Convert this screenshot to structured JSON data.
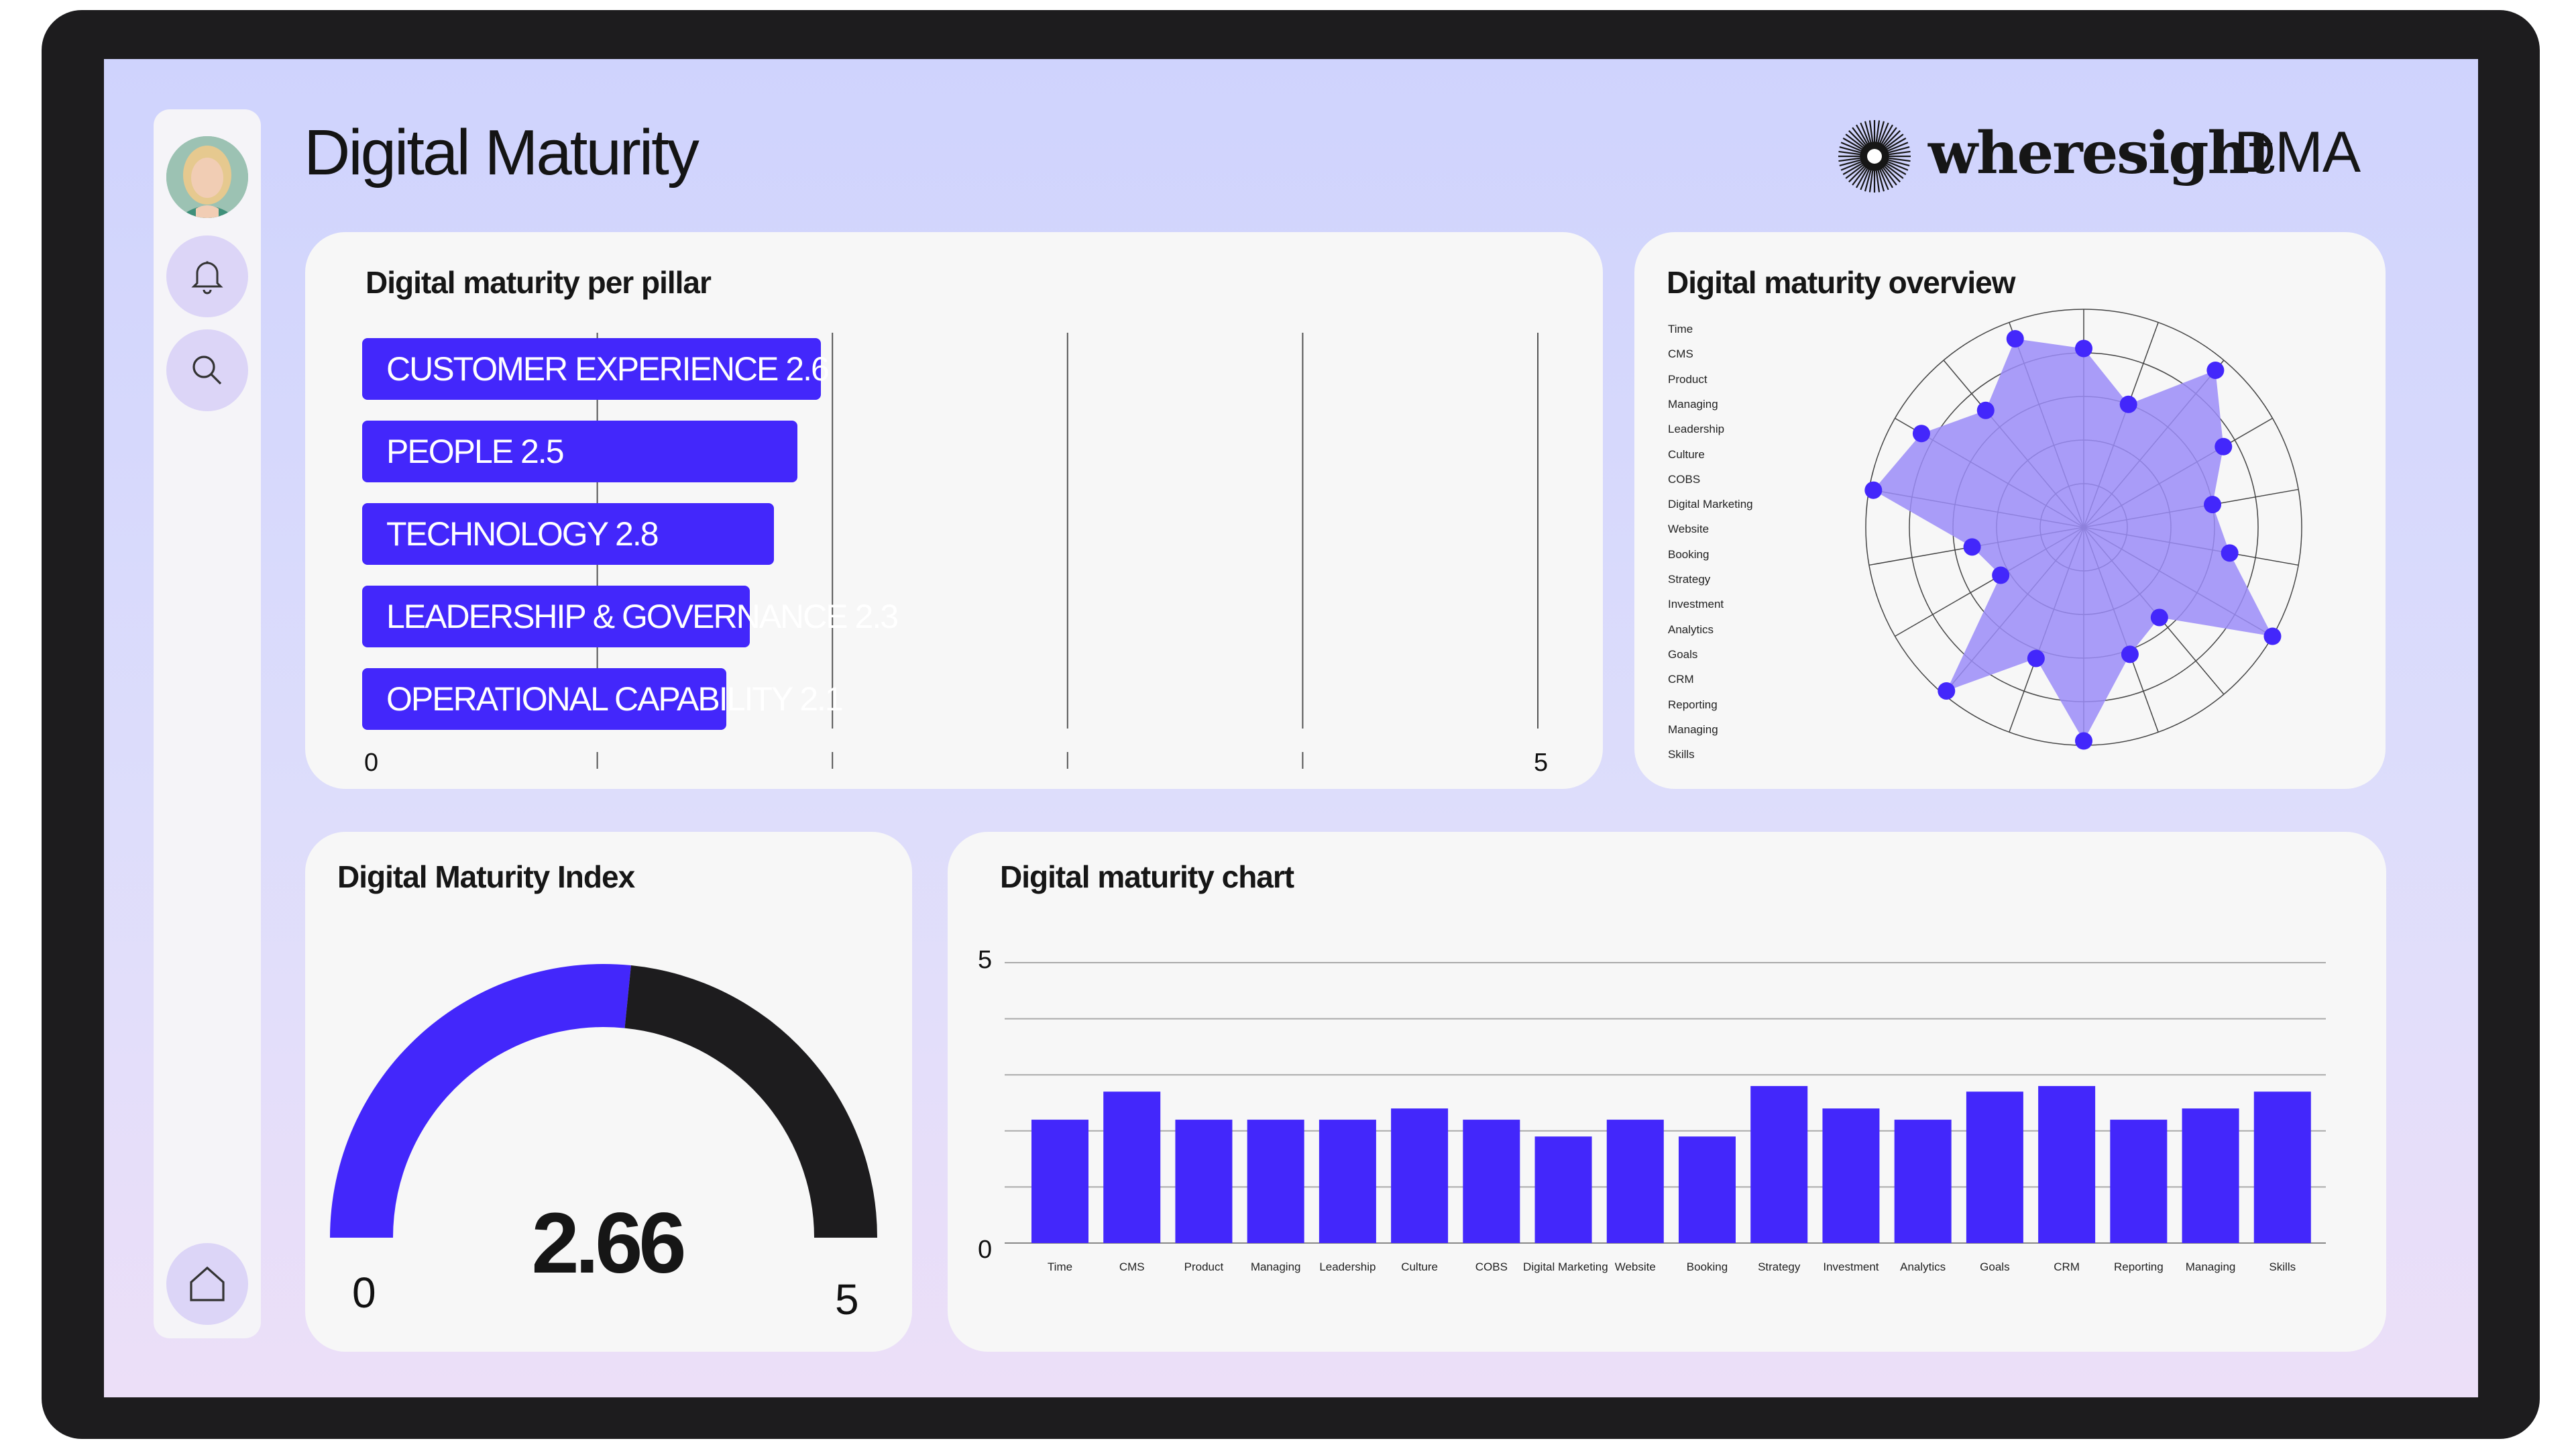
{
  "header": {
    "title": "Digital Maturity"
  },
  "brand": {
    "name": "wheresight",
    "suffix": "DMA",
    "logo_icon": "sunburst-logo-icon"
  },
  "sidebar": {
    "avatar": "user-avatar",
    "items": [
      {
        "icon": "bell-icon"
      },
      {
        "icon": "search-icon"
      },
      {
        "icon": "home-icon"
      }
    ]
  },
  "colors": {
    "accent": "#4327fb",
    "radar_fill": "#9b8cf8",
    "gauge_track": "#1d1c1e",
    "card_bg": "#f7f7f7"
  },
  "pillars": {
    "title": "Digital maturity per pillar",
    "axis_min": "0",
    "axis_max": "5",
    "items": [
      {
        "label": "CUSTOMER EXPERIENCE 2.6",
        "value": 2.6
      },
      {
        "label": "PEOPLE 2.5",
        "value": 2.5
      },
      {
        "label": "TECHNOLOGY 2.8",
        "value": 2.8
      },
      {
        "label": "LEADERSHIP & GOVERNANCE 2.3",
        "value": 2.3
      },
      {
        "label": "OPERATIONAL CAPABILITY 2.1",
        "value": 2.1
      }
    ]
  },
  "overview": {
    "title": "Digital maturity overview",
    "labels": [
      "Time",
      "CMS",
      "Product",
      "Managing",
      "Leadership",
      "Culture",
      "COBS",
      "Digital Marketing",
      "Website",
      "Booking",
      "Strategy",
      "Investment",
      "Analytics",
      "Goals",
      "CRM",
      "Reporting",
      "Managing",
      "Skills"
    ]
  },
  "index": {
    "title": "Digital Maturity Index",
    "value": "2.66",
    "min": "0",
    "max": "5"
  },
  "chart": {
    "title": "Digital maturity chart",
    "y_max_label": "5",
    "y_min_label": "0"
  },
  "chart_data": [
    {
      "type": "bar",
      "title": "Digital maturity per pillar",
      "categories": [
        "CUSTOMER EXPERIENCE",
        "PEOPLE",
        "TECHNOLOGY",
        "LEADERSHIP & GOVERNANCE",
        "OPERATIONAL CAPABILITY"
      ],
      "values": [
        2.6,
        2.5,
        2.8,
        2.3,
        2.1
      ],
      "xlim": [
        0,
        5
      ],
      "orientation": "horizontal"
    },
    {
      "type": "radar",
      "title": "Digital maturity overview",
      "categories": [
        "Time",
        "CMS",
        "Product",
        "Managing",
        "Leadership",
        "Culture",
        "COBS",
        "Digital Marketing",
        "Website",
        "Booking",
        "Strategy",
        "Investment",
        "Analytics",
        "Goals",
        "CRM",
        "Reporting",
        "Managing",
        "Skills"
      ],
      "values": [
        4.1,
        3.0,
        4.7,
        3.7,
        3.0,
        3.4,
        5.0,
        2.7,
        3.1,
        4.9,
        3.2,
        4.9,
        2.2,
        2.6,
        4.9,
        4.3,
        3.5,
        4.6
      ],
      "rlim": [
        0,
        5
      ]
    },
    {
      "type": "bar",
      "title": "Digital maturity chart",
      "categories": [
        "Time",
        "CMS",
        "Product",
        "Managing",
        "Leadership",
        "Culture",
        "COBS",
        "Digital  Marketing",
        "Website",
        "Booking",
        "Strategy",
        "Investment",
        "Analytics",
        "Goals",
        "CRM",
        "Reporting",
        "Managing",
        "Skills"
      ],
      "values": [
        2.2,
        2.7,
        2.2,
        2.2,
        2.2,
        2.4,
        2.2,
        1.9,
        2.2,
        1.9,
        2.8,
        2.4,
        2.2,
        2.7,
        2.8,
        2.2,
        2.4,
        2.7
      ],
      "ylim": [
        0,
        5
      ],
      "grid": true
    }
  ]
}
